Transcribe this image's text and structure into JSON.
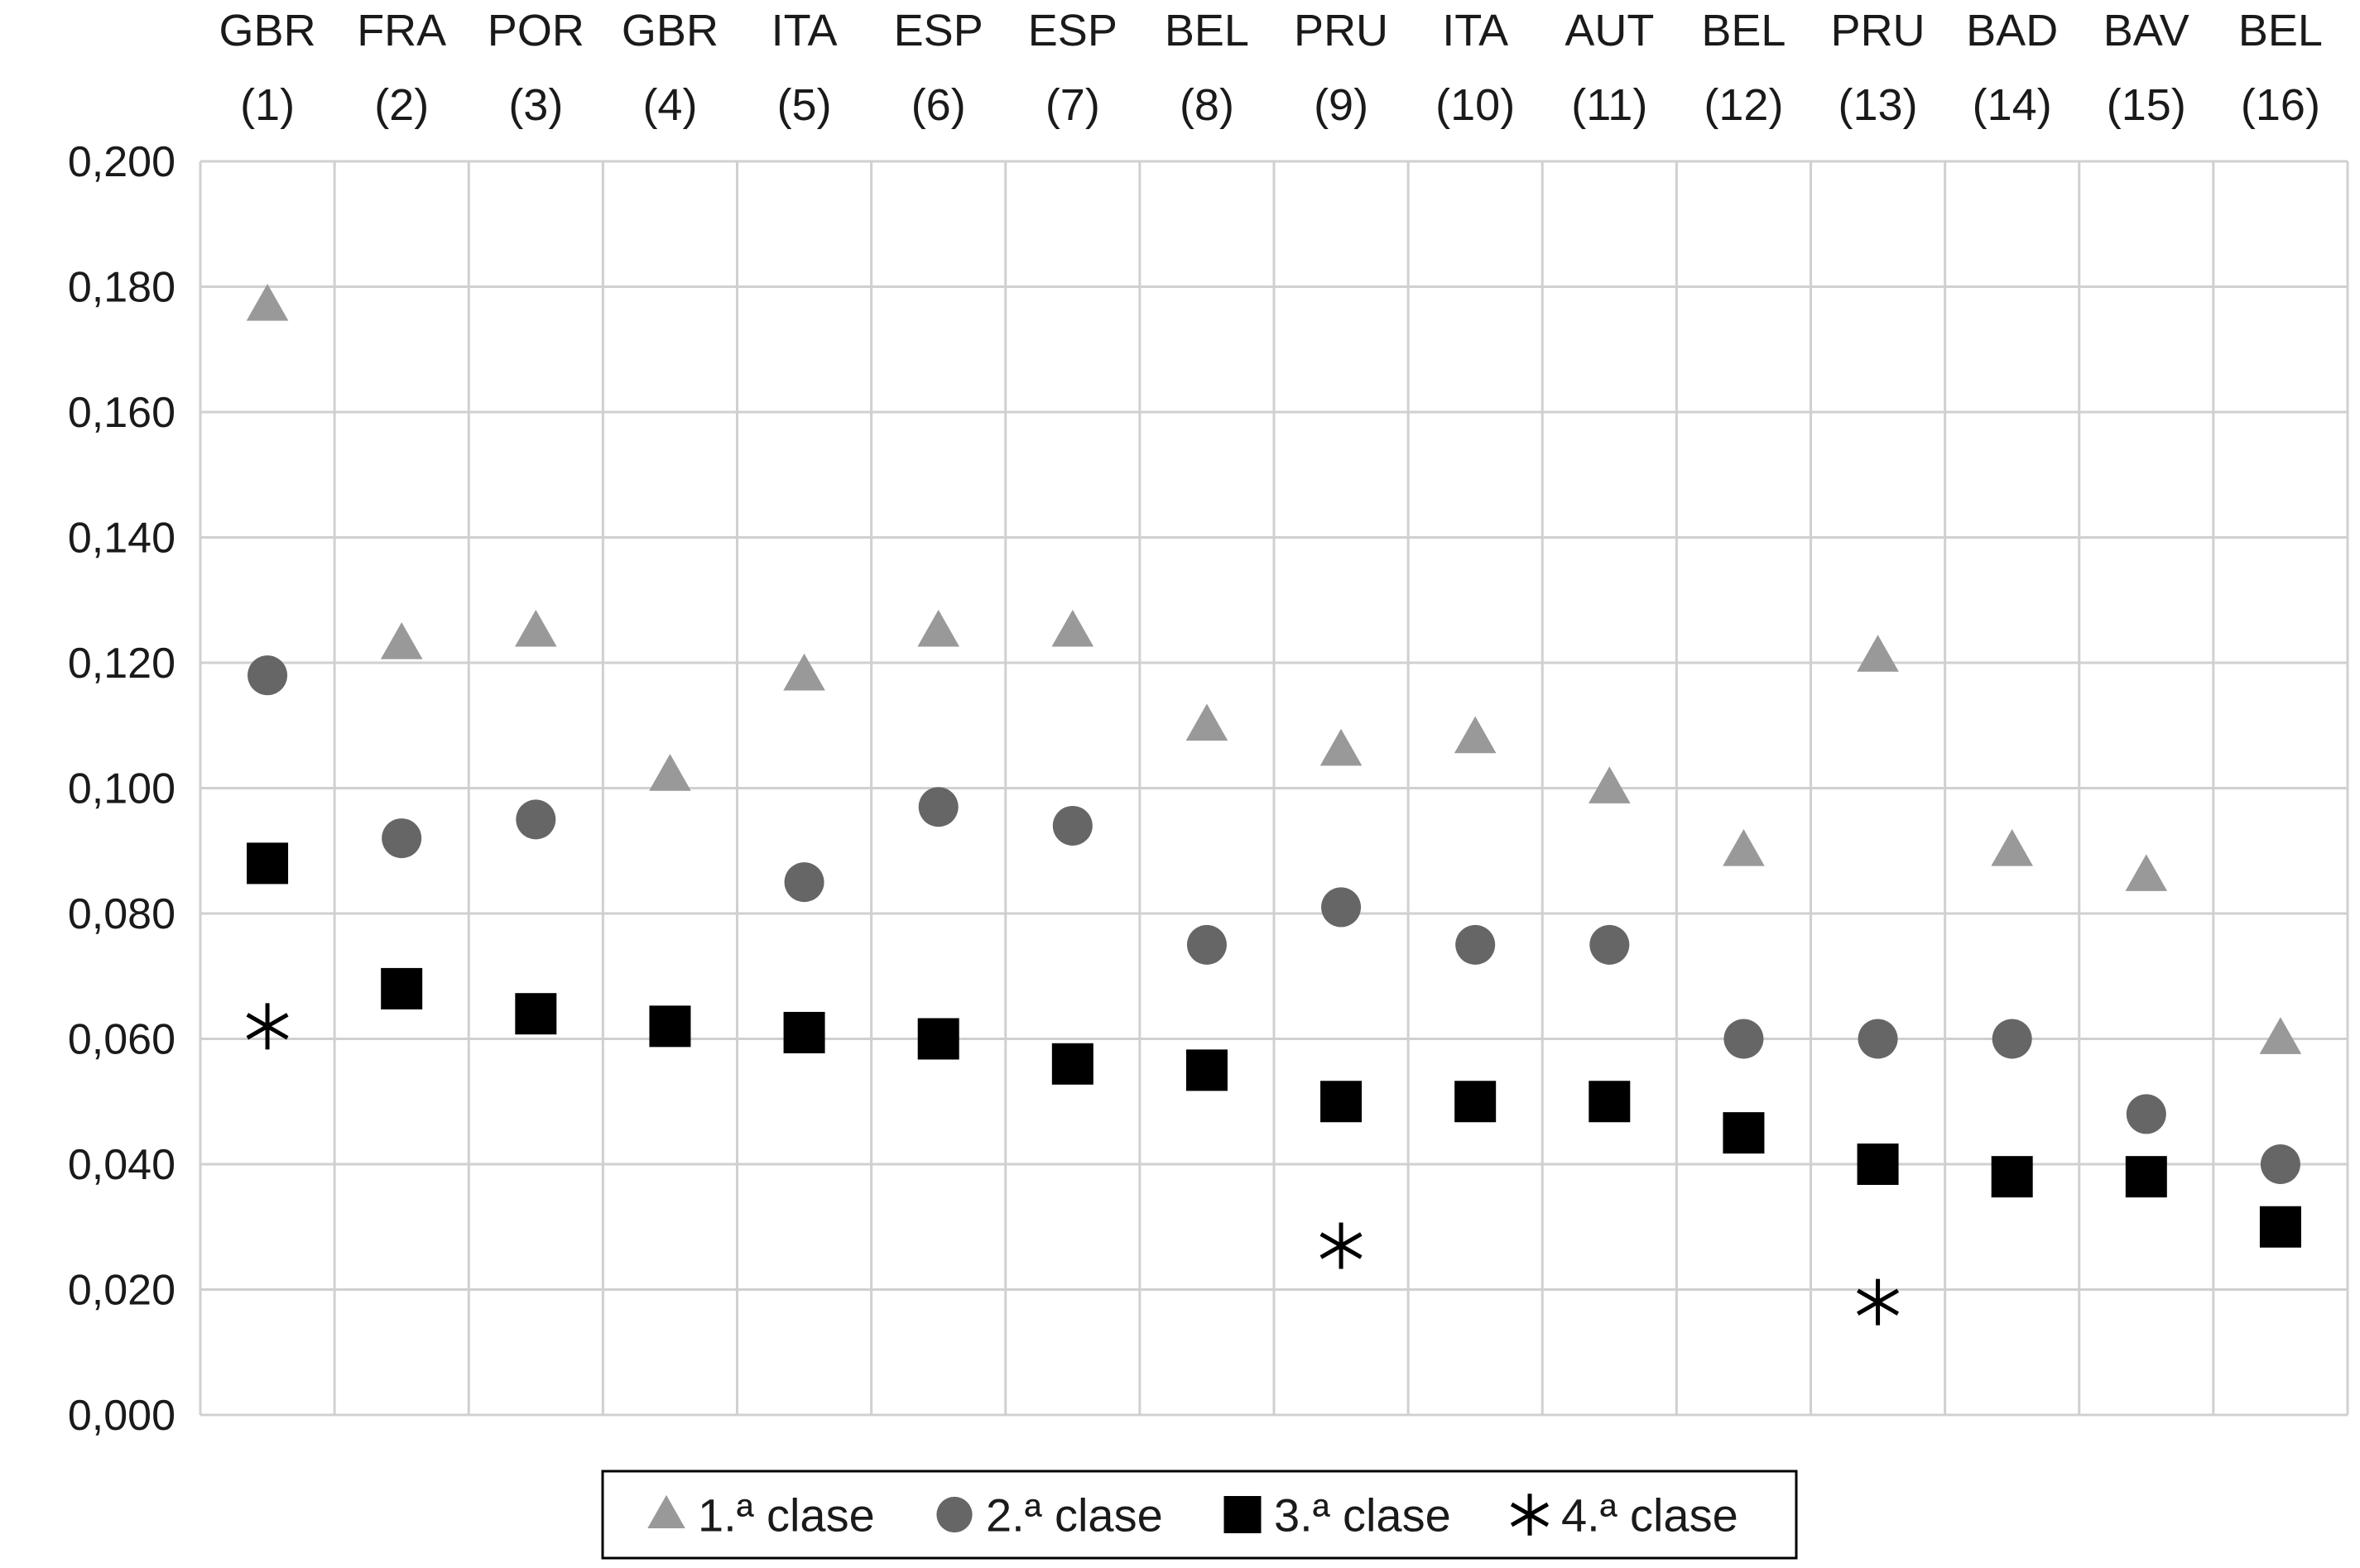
{
  "chart_data": {
    "type": "scatter",
    "categories": [
      {
        "code": "GBR",
        "num": "(1)"
      },
      {
        "code": "FRA",
        "num": "(2)"
      },
      {
        "code": "POR",
        "num": "(3)"
      },
      {
        "code": "GBR",
        "num": "(4)"
      },
      {
        "code": "ITA",
        "num": "(5)"
      },
      {
        "code": "ESP",
        "num": "(6)"
      },
      {
        "code": "ESP",
        "num": "(7)"
      },
      {
        "code": "BEL",
        "num": "(8)"
      },
      {
        "code": "PRU",
        "num": "(9)"
      },
      {
        "code": "ITA",
        "num": "(10)"
      },
      {
        "code": "AUT",
        "num": "(11)"
      },
      {
        "code": "BEL",
        "num": "(12)"
      },
      {
        "code": "PRU",
        "num": "(13)"
      },
      {
        "code": "BAD",
        "num": "(14)"
      },
      {
        "code": "BAV",
        "num": "(15)"
      },
      {
        "code": "BEL",
        "num": "(16)"
      }
    ],
    "ylim": [
      0,
      0.2
    ],
    "y_ticks": [
      "0,000",
      "0,020",
      "0,040",
      "0,060",
      "0,080",
      "0,100",
      "0,120",
      "0,140",
      "0,160",
      "0,180",
      "0,200"
    ],
    "grid": true,
    "legend_position": "bottom",
    "series": [
      {
        "name": "1.ª clase",
        "marker": "triangle",
        "color": "#999999",
        "values": [
          0.177,
          0.123,
          0.125,
          0.102,
          0.118,
          0.125,
          0.125,
          0.11,
          0.106,
          0.108,
          0.1,
          0.09,
          0.121,
          0.09,
          0.086,
          0.06
        ]
      },
      {
        "name": "2.ª clase",
        "marker": "circle",
        "color": "#666666",
        "values": [
          0.118,
          0.092,
          0.095,
          null,
          0.085,
          0.097,
          0.094,
          0.075,
          0.081,
          0.075,
          0.075,
          0.06,
          0.06,
          0.06,
          0.048,
          0.04
        ]
      },
      {
        "name": "3.ª clase",
        "marker": "square",
        "color": "#000000",
        "values": [
          0.088,
          0.068,
          0.064,
          0.062,
          0.061,
          0.06,
          0.056,
          0.055,
          0.05,
          0.05,
          0.05,
          0.045,
          0.04,
          0.038,
          0.038,
          0.03
        ]
      },
      {
        "name": "4.ª clase",
        "marker": "asterisk",
        "color": "#000000",
        "values": [
          0.062,
          null,
          null,
          null,
          null,
          null,
          null,
          null,
          0.027,
          null,
          null,
          null,
          0.018,
          null,
          null,
          null
        ]
      }
    ]
  }
}
